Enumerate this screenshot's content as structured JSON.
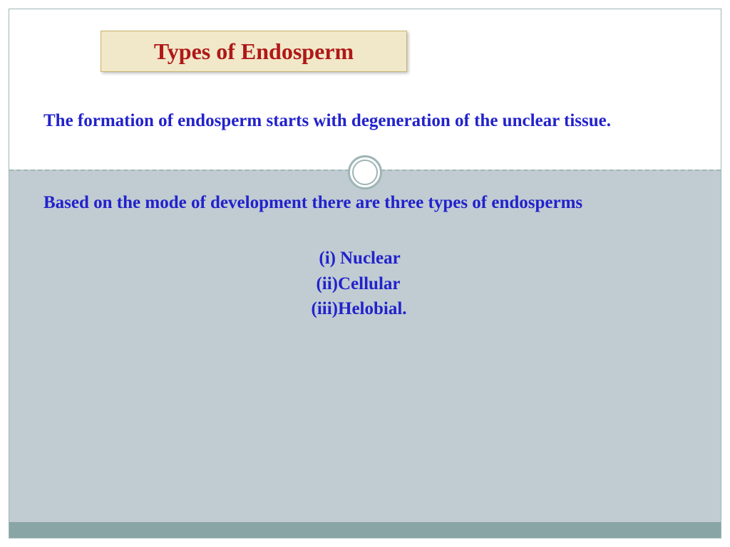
{
  "slide": {
    "title": "Types of Endosperm",
    "title_color": "#b01818",
    "title_bg": "#f0e8c8",
    "title_border": "#c9b56b",
    "body_color": "#2222cc",
    "paragraph1": "The formation of endosperm starts with degeneration of the unclear tissue.",
    "paragraph2": "Based on the mode of development there are three types of endosperms",
    "list": [
      {
        "label": "(i)",
        "value": "Nuclear"
      },
      {
        "label": "(ii)",
        "value": "Cellular"
      },
      {
        "label": "(iii)",
        "value": "Helobial."
      }
    ],
    "colors": {
      "frame_border": "#9fb5b5",
      "upper_bg": "#ffffff",
      "lower_bg": "#c0ccd2",
      "bottom_bar": "#8aa5a5",
      "divider": "#9fb5b5",
      "circle_ring": "#9fb5b5"
    },
    "fontsize": {
      "title": 32,
      "body": 25
    }
  }
}
